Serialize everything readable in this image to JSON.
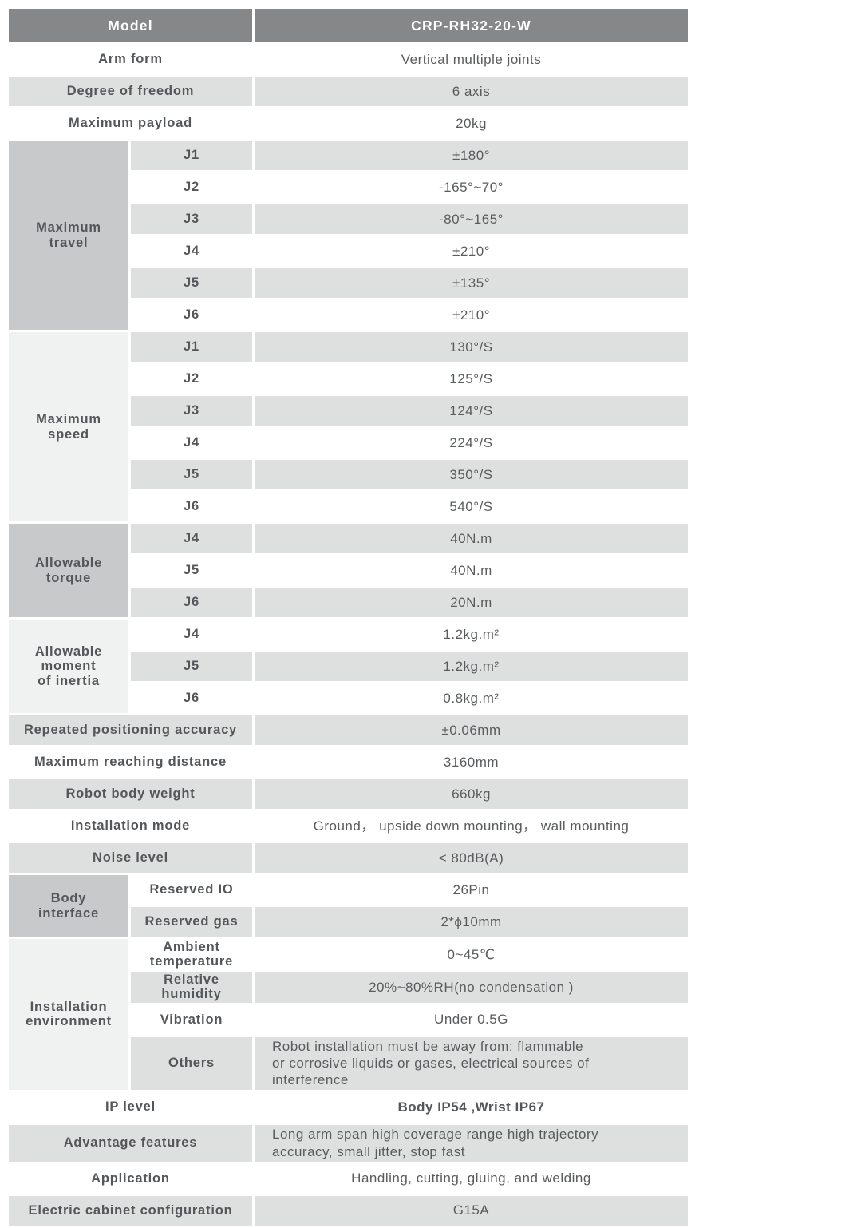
{
  "colors": {
    "header_bg": "#868789",
    "stripe_bg": "#dee0e0",
    "group_dark_bg": "#c7c9cb",
    "group_light_bg": "#f0f1f1",
    "text": "#595c5e",
    "header_text": "#ffffff"
  },
  "table": {
    "header": {
      "label": "Model",
      "value": "CRP-RH32-20-W"
    },
    "top_rows": [
      {
        "label": "Arm form",
        "value": "Vertical multiple joints"
      },
      {
        "label": "Degree of freedom",
        "value": "6 axis"
      },
      {
        "label": "Maximum payload",
        "value": "20kg"
      }
    ],
    "travel": {
      "label": "Maximum\ntravel",
      "rows": [
        {
          "joint": "J1",
          "value": "±180°"
        },
        {
          "joint": "J2",
          "value": "-165°~70°"
        },
        {
          "joint": "J3",
          "value": "-80°~165°"
        },
        {
          "joint": "J4",
          "value": "±210°"
        },
        {
          "joint": "J5",
          "value": "±135°"
        },
        {
          "joint": "J6",
          "value": "±210°"
        }
      ]
    },
    "speed": {
      "label": "Maximum\nspeed",
      "rows": [
        {
          "joint": "J1",
          "value": "130°/S"
        },
        {
          "joint": "J2",
          "value": "125°/S"
        },
        {
          "joint": "J3",
          "value": "124°/S"
        },
        {
          "joint": "J4",
          "value": "224°/S"
        },
        {
          "joint": "J5",
          "value": "350°/S"
        },
        {
          "joint": "J6",
          "value": "540°/S"
        }
      ]
    },
    "torque": {
      "label": "Allowable\ntorque",
      "rows": [
        {
          "joint": "J4",
          "value": "40N.m"
        },
        {
          "joint": "J5",
          "value": "40N.m"
        },
        {
          "joint": "J6",
          "value": "20N.m"
        }
      ]
    },
    "inertia": {
      "label": "Allowable\nmoment\nof inertia",
      "rows": [
        {
          "joint": "J4",
          "value": "1.2kg.m²"
        },
        {
          "joint": "J5",
          "value": "1.2kg.m²"
        },
        {
          "joint": "J6",
          "value": "0.8kg.m²"
        }
      ]
    },
    "mid_rows": [
      {
        "label": "Repeated positioning accuracy",
        "value": "±0.06mm"
      },
      {
        "label": "Maximum reaching distance",
        "value": "3160mm"
      },
      {
        "label": "Robot body weight",
        "value": "660kg"
      },
      {
        "label": "Installation mode",
        "value": "Ground， upside down mounting， wall mounting"
      },
      {
        "label": "Noise level",
        "value": "< 80dB(A)"
      }
    ],
    "body_interface": {
      "label": "Body\ninterface",
      "rows": [
        {
          "name": "Reserved IO",
          "value": "26Pin"
        },
        {
          "name": "Reserved gas",
          "value": "2*ϕ10mm"
        }
      ]
    },
    "environment": {
      "label": "Installation\nenvironment",
      "rows": [
        {
          "name": "Ambient\ntemperature",
          "value": "0~45℃"
        },
        {
          "name": "Relative\nhumidity",
          "value": "20%~80%RH(no condensation )"
        },
        {
          "name": "Vibration",
          "value": "Under 0.5G"
        },
        {
          "name": "Others",
          "value": "Robot installation must be away from: flammable\nor corrosive liquids or gases, electrical sources of\ninterference"
        }
      ]
    },
    "bottom_rows": [
      {
        "label": "IP level",
        "value": "Body IP54 ,Wrist IP67"
      },
      {
        "label": "Advantage features",
        "value": "Long arm span high coverage range  high trajectory\naccuracy, small jitter, stop fast"
      },
      {
        "label": "Application",
        "value": "Handling, cutting, gluing, and welding"
      },
      {
        "label": "Electric cabinet configuration",
        "value": "G15A"
      }
    ]
  }
}
